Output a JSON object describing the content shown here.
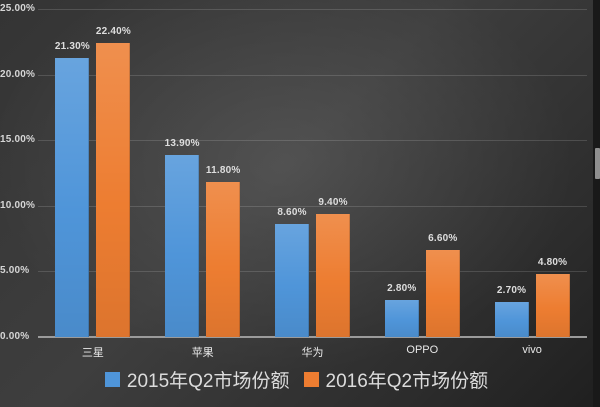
{
  "chart_data": {
    "type": "bar",
    "categories": [
      "三星",
      "苹果",
      "华为",
      "OPPO",
      "vivo"
    ],
    "series": [
      {
        "name": "2015年Q2市场份额",
        "color": "#4f95d9",
        "values": [
          21.3,
          13.9,
          8.6,
          2.8,
          2.7
        ],
        "labels": [
          "21.30%",
          "13.90%",
          "8.60%",
          "2.80%",
          "2.70%"
        ]
      },
      {
        "name": "2016年Q2市场份额",
        "color": "#ed7d31",
        "values": [
          22.4,
          11.8,
          9.4,
          6.6,
          4.8
        ],
        "labels": [
          "22.40%",
          "11.80%",
          "9.40%",
          "6.60%",
          "4.80%"
        ]
      }
    ],
    "title": "",
    "xlabel": "",
    "ylabel": "",
    "ylim": [
      0,
      25
    ],
    "ytick_step": 5,
    "ytick_labels": [
      "0.00%",
      "5.00%",
      "10.00%",
      "15.00%",
      "20.00%",
      "25.00%"
    ],
    "grid": true,
    "legend_position": "bottom"
  },
  "colors": {
    "background_center": "#4e4e4e",
    "background_edge": "#1f1f1f",
    "gridline": "rgba(255,255,255,0.14)",
    "axis_line": "#9b9b9b",
    "tick_text": "#d6d6d6",
    "category_text": "#e8e8e8",
    "legend_text": "#dcdcdc"
  }
}
